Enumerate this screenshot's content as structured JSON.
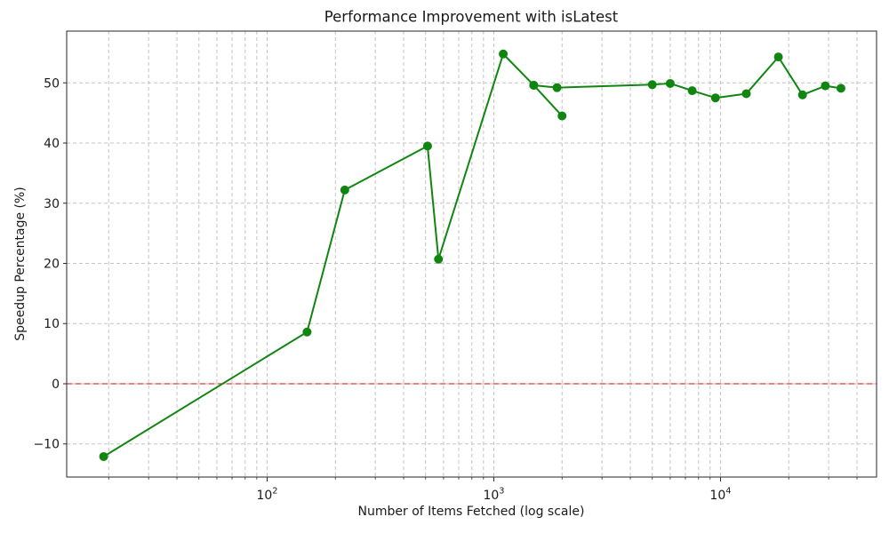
{
  "figure": {
    "background": "#ffffff"
  },
  "chart_data": {
    "type": "line",
    "title": "Performance Improvement with isLatest",
    "xlabel": "Number of Items Fetched (log scale)",
    "ylabel": "Speedup Percentage (%)",
    "x_scale": "log",
    "y_scale": "linear",
    "xlim": [
      13.05,
      48800
    ],
    "ylim": [
      -15.5,
      58.6
    ],
    "grid": true,
    "grid_style": "dashed",
    "grid_color": "#c4c4c4",
    "legend_position": "none",
    "line_color": "#108610",
    "marker": "circle",
    "series": [
      {
        "name": "speedup",
        "color": "#108610",
        "x": [
          19,
          150,
          220,
          510,
          570,
          1100,
          1500,
          1900,
          5000,
          6000,
          7500,
          9500,
          13000,
          18000,
          23000,
          29000,
          34000
        ],
        "y": [
          -12.1,
          8.6,
          32.2,
          39.5,
          20.7,
          54.8,
          49.6,
          49.2,
          49.7,
          49.9,
          48.7,
          47.5,
          48.2,
          54.3,
          48.0,
          49.5,
          49.1
        ]
      },
      {
        "name": "speedup-dip-branch",
        "color": "#108610",
        "x": [
          1500,
          2000
        ],
        "y": [
          49.6,
          44.5
        ]
      }
    ],
    "zero_line": {
      "y": 0,
      "style": "dashed",
      "dash_color": "#dd6a6a",
      "underlay_color": "#f6bdbd"
    },
    "x_major_ticks": [
      {
        "value": 100,
        "base": "10",
        "exp": "2"
      },
      {
        "value": 1000,
        "base": "10",
        "exp": "3"
      },
      {
        "value": 10000,
        "base": "10",
        "exp": "4"
      }
    ],
    "x_minor_ticks": [
      20,
      30,
      40,
      50,
      60,
      70,
      80,
      90,
      200,
      300,
      400,
      500,
      600,
      700,
      800,
      900,
      2000,
      3000,
      4000,
      5000,
      6000,
      7000,
      8000,
      9000,
      20000,
      30000,
      40000
    ],
    "y_ticks": [
      {
        "value": -10,
        "label": "−10"
      },
      {
        "value": 0,
        "label": "0"
      },
      {
        "value": 10,
        "label": "10"
      },
      {
        "value": 20,
        "label": "20"
      },
      {
        "value": 30,
        "label": "30"
      },
      {
        "value": 40,
        "label": "40"
      },
      {
        "value": 50,
        "label": "50"
      }
    ]
  }
}
